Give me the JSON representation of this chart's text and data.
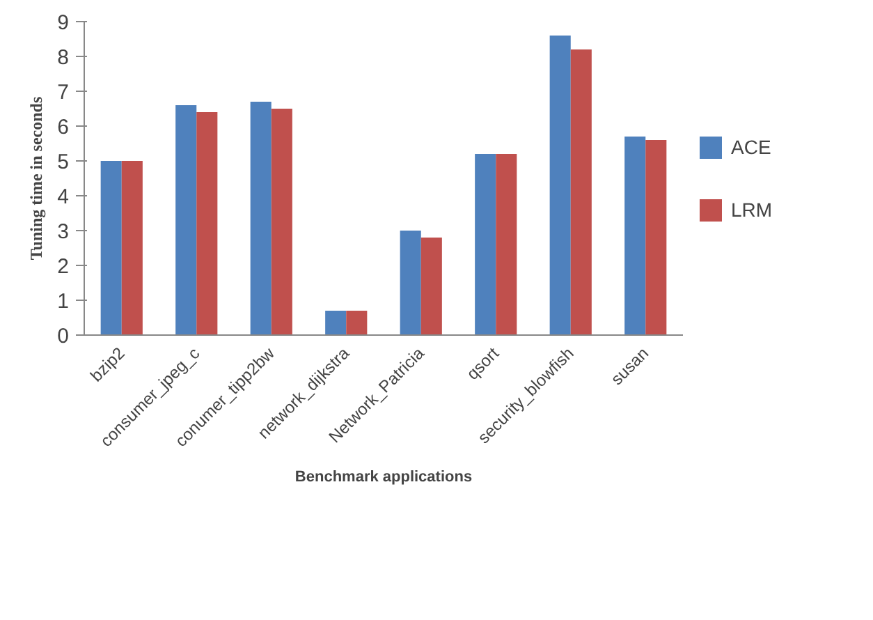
{
  "chart_data": {
    "type": "bar",
    "xlabel": "Benchmark applications",
    "ylabel": "Tuning time in seconds",
    "categories": [
      "bzip2",
      "consumer_jpeg_c",
      "conumer_tipp2bw",
      "network_dijkstra",
      "Network_Patricia",
      "qsort",
      "security_blowfish",
      "susan"
    ],
    "series": [
      {
        "name": "ACE",
        "color": "#4f81bd",
        "values": [
          5.0,
          6.6,
          6.7,
          0.7,
          3.0,
          5.2,
          8.6,
          5.7
        ]
      },
      {
        "name": "LRM",
        "color": "#c0504d",
        "values": [
          5.0,
          6.4,
          6.5,
          0.7,
          2.8,
          5.2,
          8.2,
          5.6
        ]
      }
    ],
    "ylim": [
      0,
      9
    ],
    "yticks": [
      0,
      1,
      2,
      3,
      4,
      5,
      6,
      7,
      8,
      9
    ],
    "grid": false,
    "legend": "right"
  }
}
